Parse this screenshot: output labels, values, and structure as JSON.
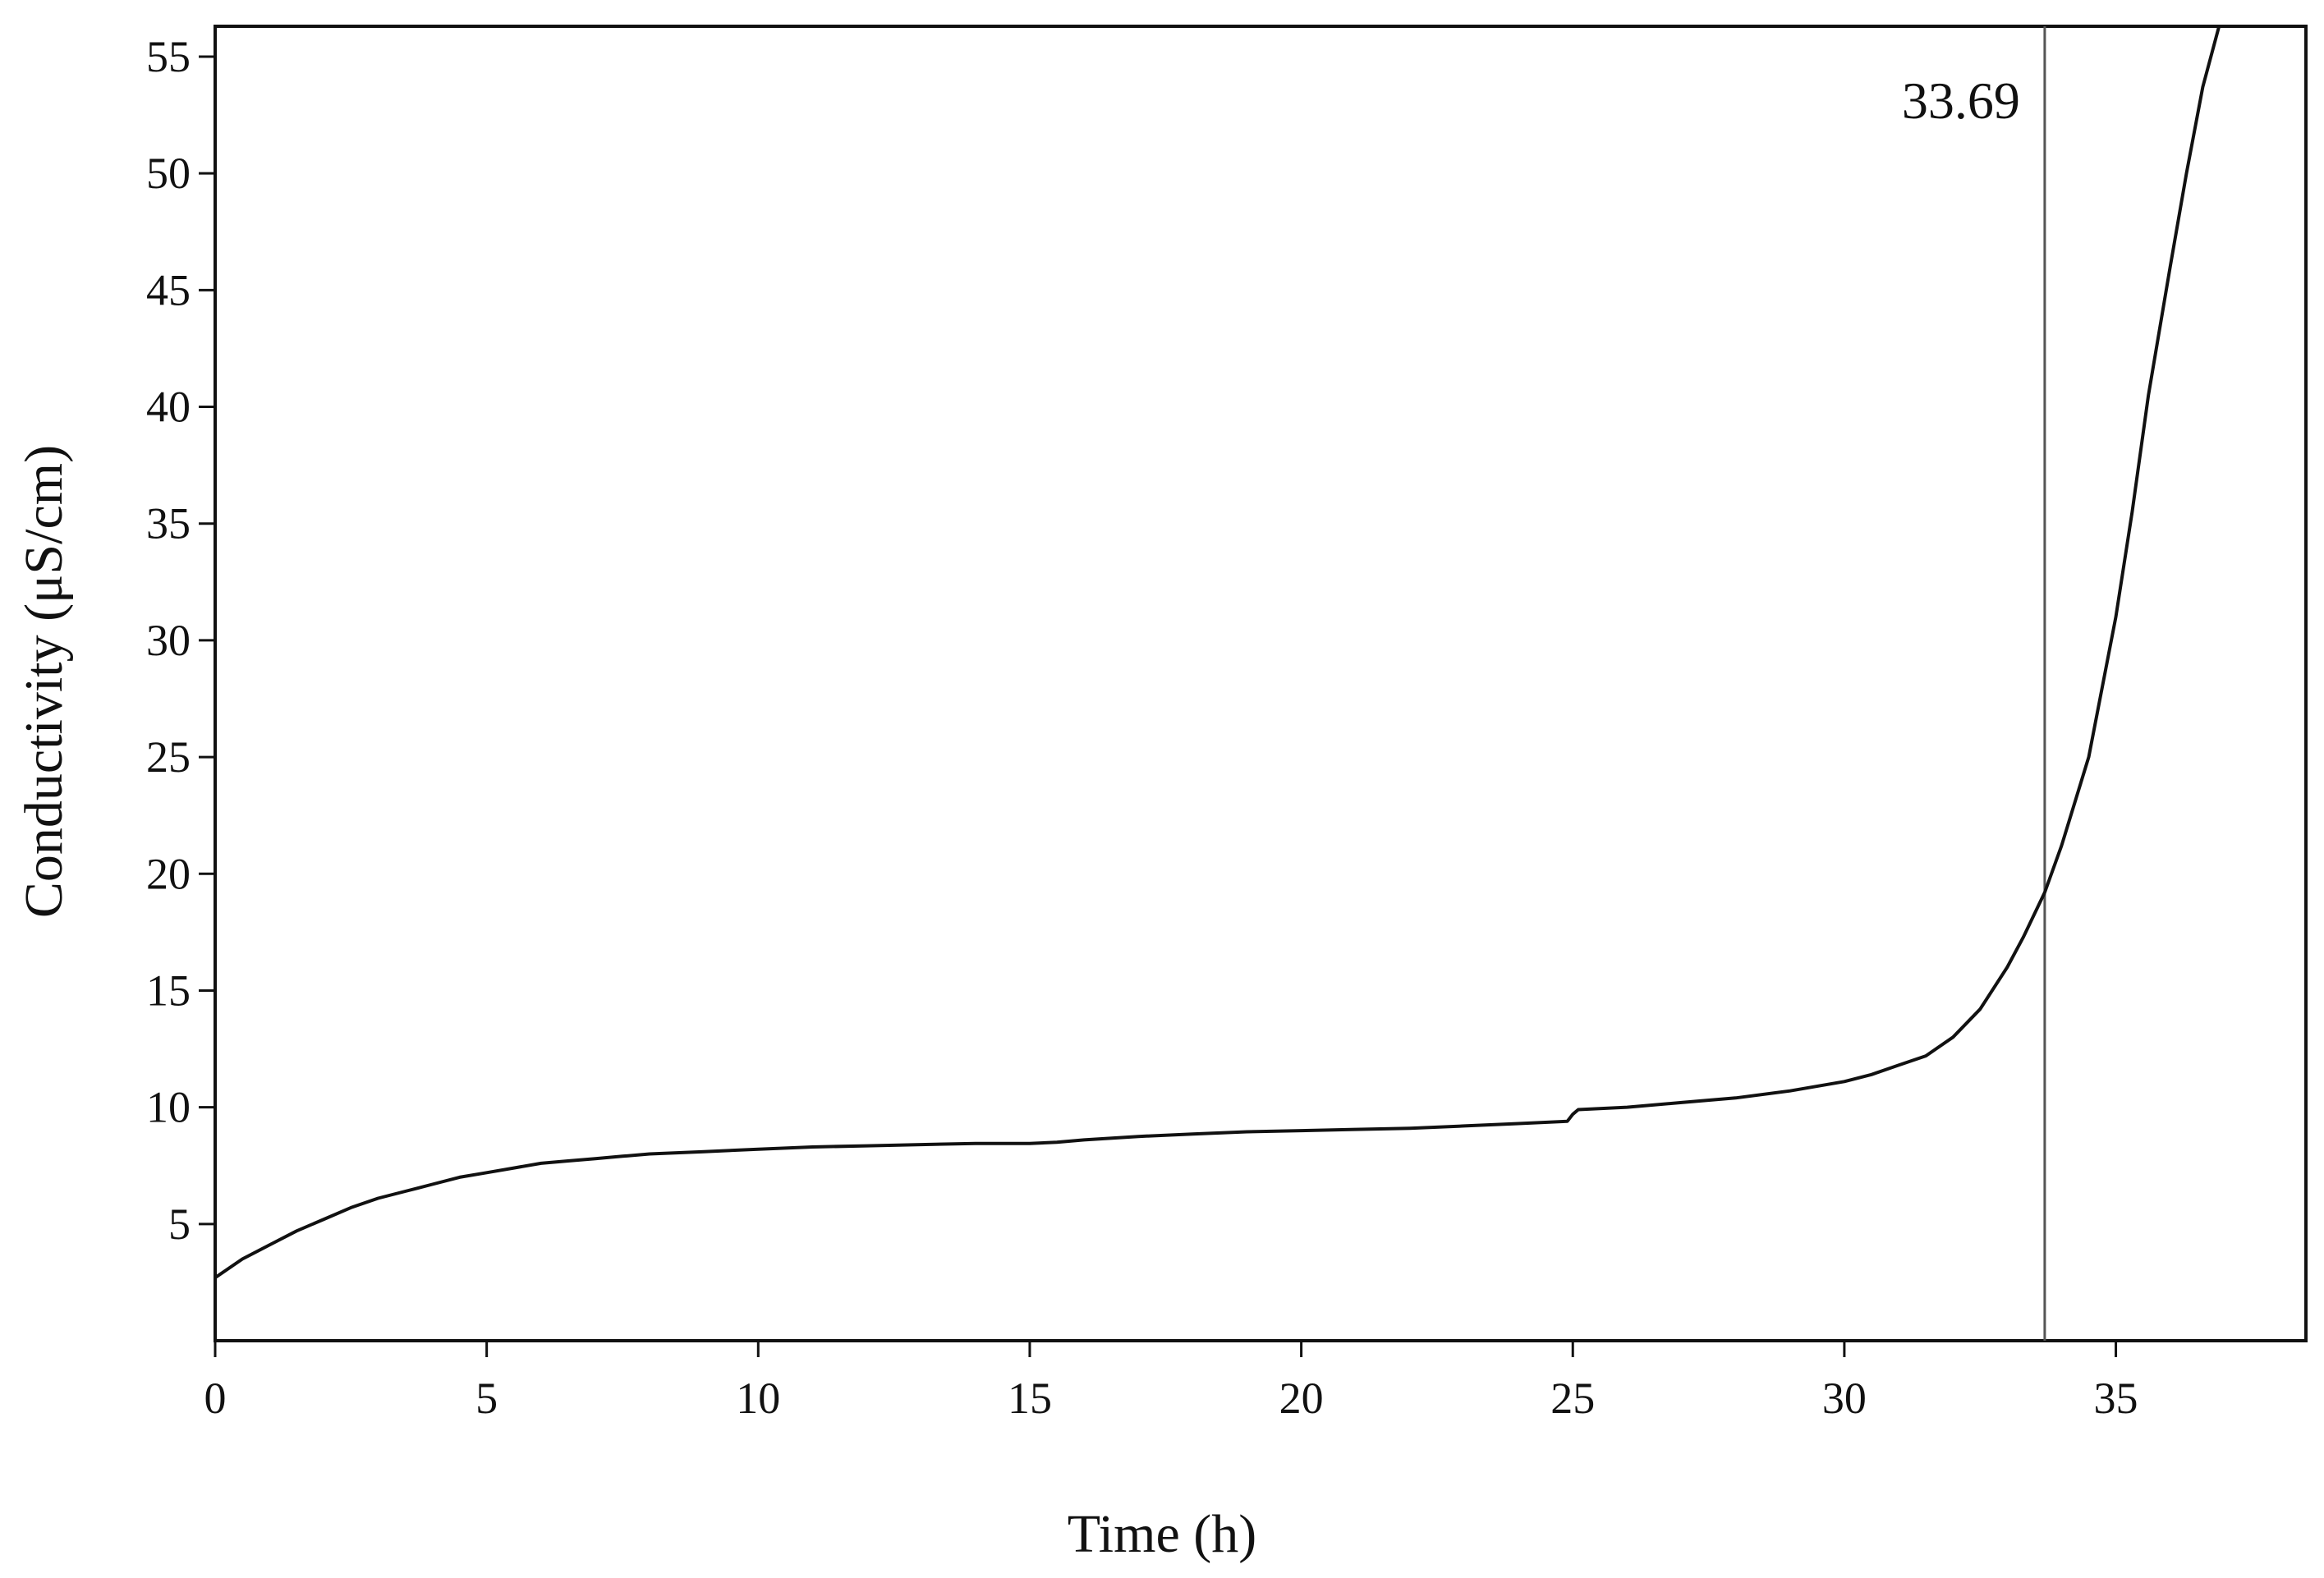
{
  "chart_data": {
    "type": "line",
    "title": "",
    "xlabel": "Time (h)",
    "ylabel": "Conductivity (μS/cm)",
    "xlim": [
      0,
      38.5
    ],
    "ylim": [
      0,
      56.3
    ],
    "xticks": [
      0,
      5,
      10,
      15,
      20,
      25,
      30,
      35
    ],
    "yticks": [
      5,
      10,
      15,
      20,
      25,
      30,
      35,
      40,
      45,
      50,
      55
    ],
    "grid": false,
    "series": [
      {
        "name": "Conductivity",
        "x": [
          0,
          0.5,
          1,
          1.5,
          2,
          2.5,
          3,
          3.5,
          4,
          4.5,
          5,
          5.5,
          6,
          6.5,
          7,
          7.5,
          8,
          9,
          10,
          11,
          12,
          13,
          14,
          15,
          15.5,
          16,
          17,
          18,
          19,
          20,
          21,
          22,
          23,
          24,
          24.9,
          25,
          25.1,
          26,
          27,
          28,
          29,
          30,
          30.5,
          31,
          31.5,
          32,
          32.5,
          33,
          33.3,
          33.69,
          34,
          34.5,
          35,
          35.3,
          35.6,
          36,
          36.3,
          36.6,
          36.9
        ],
        "values": [
          2.7,
          3.5,
          4.1,
          4.7,
          5.2,
          5.7,
          6.1,
          6.4,
          6.7,
          7.0,
          7.2,
          7.4,
          7.6,
          7.7,
          7.8,
          7.9,
          8.0,
          8.1,
          8.2,
          8.3,
          8.35,
          8.4,
          8.45,
          8.45,
          8.5,
          8.6,
          8.75,
          8.85,
          8.95,
          9.0,
          9.05,
          9.1,
          9.2,
          9.3,
          9.4,
          9.7,
          9.9,
          10.0,
          10.2,
          10.4,
          10.7,
          11.1,
          11.4,
          11.8,
          12.2,
          13.0,
          14.2,
          16.0,
          17.3,
          19.2,
          21.2,
          25.0,
          31.0,
          35.5,
          40.5,
          46.0,
          50.0,
          53.7,
          56.3
        ]
      }
    ],
    "annotations": [
      {
        "type": "vertical-line",
        "x": 33.69,
        "label": "33.69"
      }
    ]
  }
}
